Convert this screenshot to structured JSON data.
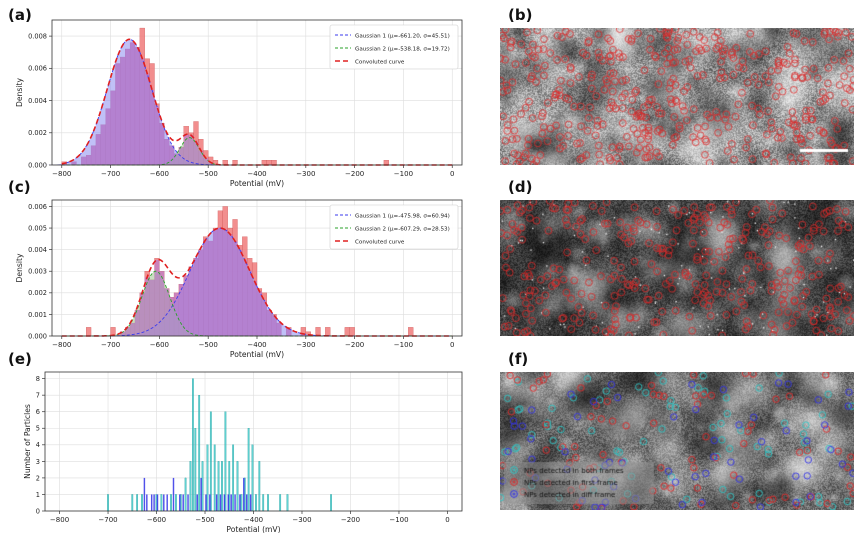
{
  "panels": {
    "a": "(a)",
    "b": "(b)",
    "c": "(c)",
    "d": "(d)",
    "e": "(e)",
    "f": "(f)"
  },
  "colors": {
    "hist_red": "#f07a7a",
    "overlap_purple": "#b07ad8",
    "fill_blue": "#8c8cf0",
    "fill_green": "#a7c79a",
    "gauss1": "#3a3aee",
    "gauss2": "#2aa02a",
    "conv": "#e02020",
    "both_frames": "#2ec4c4",
    "first_frame": "#e02828",
    "diff_frame": "#3232e6",
    "grid": "#dddddd"
  },
  "chart_data": [
    {
      "type": "bar",
      "panel": "(a)",
      "xlabel": "Potential (mV)",
      "ylabel": "Density",
      "xlim": [
        -820,
        20
      ],
      "ylim": [
        0,
        0.009
      ],
      "xticks": [
        -800,
        -700,
        -600,
        -500,
        -400,
        -300,
        -200,
        -100,
        0
      ],
      "yticks": [
        0.0,
        0.002,
        0.004,
        0.006,
        0.008
      ],
      "ytick_labels": [
        "0.000",
        "0.002",
        "0.004",
        "0.006",
        "0.008"
      ],
      "grid": true,
      "legend_position": "top-right",
      "bin_width": 10,
      "bins": [
        {
          "x": -800,
          "y": 0.0002
        },
        {
          "x": -780,
          "y": 0.0002
        },
        {
          "x": -760,
          "y": 0.0005
        },
        {
          "x": -750,
          "y": 0.0006
        },
        {
          "x": -740,
          "y": 0.0012
        },
        {
          "x": -730,
          "y": 0.0019
        },
        {
          "x": -720,
          "y": 0.0025
        },
        {
          "x": -710,
          "y": 0.0035
        },
        {
          "x": -700,
          "y": 0.0046
        },
        {
          "x": -690,
          "y": 0.0063
        },
        {
          "x": -680,
          "y": 0.0067
        },
        {
          "x": -670,
          "y": 0.0072
        },
        {
          "x": -660,
          "y": 0.0076
        },
        {
          "x": -650,
          "y": 0.0073
        },
        {
          "x": -640,
          "y": 0.0085
        },
        {
          "x": -630,
          "y": 0.0066
        },
        {
          "x": -620,
          "y": 0.0063
        },
        {
          "x": -610,
          "y": 0.0038
        },
        {
          "x": -600,
          "y": 0.0026
        },
        {
          "x": -590,
          "y": 0.0016
        },
        {
          "x": -580,
          "y": 0.0012
        },
        {
          "x": -570,
          "y": 0.0007
        },
        {
          "x": -560,
          "y": 0.0011
        },
        {
          "x": -550,
          "y": 0.0024
        },
        {
          "x": -540,
          "y": 0.002
        },
        {
          "x": -530,
          "y": 0.0027
        },
        {
          "x": -520,
          "y": 0.0016
        },
        {
          "x": -510,
          "y": 0.0009
        },
        {
          "x": -500,
          "y": 0.0005
        },
        {
          "x": -490,
          "y": 0.0003
        },
        {
          "x": -470,
          "y": 0.0003
        },
        {
          "x": -450,
          "y": 0.0003
        },
        {
          "x": -390,
          "y": 0.0003
        },
        {
          "x": -380,
          "y": 0.0003
        },
        {
          "x": -370,
          "y": 0.0003
        },
        {
          "x": -140,
          "y": 0.0003
        }
      ],
      "series": [
        {
          "name": "Gaussian 1 (μ=-661.20, σ=45.51)",
          "mu": -661.2,
          "sigma": 45.51,
          "style": "dash",
          "color": "#3a3aee"
        },
        {
          "name": "Gaussian 2 (μ=-538.18, σ=19.72)",
          "mu": -538.18,
          "sigma": 19.72,
          "style": "dash",
          "color": "#2aa02a"
        },
        {
          "name": "Convoluted curve",
          "style": "dash-thick",
          "color": "#e02020"
        }
      ],
      "peak1": 0.0078,
      "peak2": 0.0017,
      "curve_range": [
        -800,
        0
      ]
    },
    {
      "type": "bar",
      "panel": "(c)",
      "xlabel": "Potential (mV)",
      "ylabel": "Density",
      "xlim": [
        -820,
        20
      ],
      "ylim": [
        0,
        0.0063
      ],
      "xticks": [
        -800,
        -700,
        -600,
        -500,
        -400,
        -300,
        -200,
        -100,
        0
      ],
      "yticks": [
        0.0,
        0.001,
        0.002,
        0.003,
        0.004,
        0.005,
        0.006
      ],
      "ytick_labels": [
        "0.000",
        "0.001",
        "0.002",
        "0.003",
        "0.004",
        "0.005",
        "0.006"
      ],
      "grid": true,
      "legend_position": "top-right",
      "bin_width": 10,
      "bins": [
        {
          "x": -750,
          "y": 0.0004
        },
        {
          "x": -700,
          "y": 0.0004
        },
        {
          "x": -680,
          "y": 0.0002
        },
        {
          "x": -670,
          "y": 0.0004
        },
        {
          "x": -660,
          "y": 0.0006
        },
        {
          "x": -650,
          "y": 0.0012
        },
        {
          "x": -640,
          "y": 0.002
        },
        {
          "x": -630,
          "y": 0.003
        },
        {
          "x": -620,
          "y": 0.0026
        },
        {
          "x": -610,
          "y": 0.0036
        },
        {
          "x": -600,
          "y": 0.003
        },
        {
          "x": -590,
          "y": 0.0022
        },
        {
          "x": -580,
          "y": 0.0018
        },
        {
          "x": -570,
          "y": 0.002
        },
        {
          "x": -560,
          "y": 0.0024
        },
        {
          "x": -550,
          "y": 0.0028
        },
        {
          "x": -540,
          "y": 0.0032
        },
        {
          "x": -530,
          "y": 0.0036
        },
        {
          "x": -520,
          "y": 0.004
        },
        {
          "x": -510,
          "y": 0.0046
        },
        {
          "x": -500,
          "y": 0.0044
        },
        {
          "x": -490,
          "y": 0.005
        },
        {
          "x": -480,
          "y": 0.0058
        },
        {
          "x": -470,
          "y": 0.006
        },
        {
          "x": -460,
          "y": 0.005
        },
        {
          "x": -450,
          "y": 0.0054
        },
        {
          "x": -440,
          "y": 0.0042
        },
        {
          "x": -430,
          "y": 0.0046
        },
        {
          "x": -420,
          "y": 0.0036
        },
        {
          "x": -410,
          "y": 0.0034
        },
        {
          "x": -400,
          "y": 0.0022
        },
        {
          "x": -390,
          "y": 0.002
        },
        {
          "x": -380,
          "y": 0.0012
        },
        {
          "x": -370,
          "y": 0.001
        },
        {
          "x": -360,
          "y": 0.0006
        },
        {
          "x": -340,
          "y": 0.0004
        },
        {
          "x": -310,
          "y": 0.0004
        },
        {
          "x": -300,
          "y": 0.0002
        },
        {
          "x": -280,
          "y": 0.0004
        },
        {
          "x": -260,
          "y": 0.0004
        },
        {
          "x": -220,
          "y": 0.0004
        },
        {
          "x": -210,
          "y": 0.0004
        },
        {
          "x": -90,
          "y": 0.0004
        }
      ],
      "series": [
        {
          "name": "Gaussian 1 (μ=-475.98, σ=60.94)",
          "mu": -475.98,
          "sigma": 60.94,
          "style": "dash",
          "color": "#3a3aee"
        },
        {
          "name": "Gaussian 2 (μ=-607.29, σ=28.53)",
          "mu": -607.29,
          "sigma": 28.53,
          "style": "dash",
          "color": "#2aa02a"
        },
        {
          "name": "Convoluted curve",
          "style": "dash-thick",
          "color": "#e02020"
        }
      ],
      "peak1": 0.005,
      "peak2": 0.003,
      "curve_range": [
        -800,
        0
      ]
    },
    {
      "type": "bar",
      "panel": "(e)",
      "xlabel": "Potential (mV)",
      "ylabel": "Number of Particles",
      "xlim": [
        -830,
        30
      ],
      "ylim": [
        0,
        8.4
      ],
      "xticks": [
        -800,
        -700,
        -600,
        -500,
        -400,
        -300,
        -200,
        -100,
        0
      ],
      "yticks": [
        0,
        1,
        2,
        3,
        4,
        5,
        6,
        7,
        8
      ],
      "ytick_labels": [
        "0",
        "1",
        "2",
        "3",
        "4",
        "5",
        "6",
        "7",
        "8"
      ],
      "grid": true,
      "bar_width": 3,
      "cyan_bars": [
        {
          "x": -700,
          "y": 1
        },
        {
          "x": -650,
          "y": 1
        },
        {
          "x": -640,
          "y": 1
        },
        {
          "x": -630,
          "y": 1
        },
        {
          "x": -600,
          "y": 1
        },
        {
          "x": -590,
          "y": 1
        },
        {
          "x": -570,
          "y": 1
        },
        {
          "x": -560,
          "y": 1
        },
        {
          "x": -550,
          "y": 1
        },
        {
          "x": -540,
          "y": 2
        },
        {
          "x": -530,
          "y": 3
        },
        {
          "x": -525,
          "y": 8
        },
        {
          "x": -520,
          "y": 5
        },
        {
          "x": -512,
          "y": 7
        },
        {
          "x": -505,
          "y": 3
        },
        {
          "x": -495,
          "y": 4
        },
        {
          "x": -488,
          "y": 6
        },
        {
          "x": -480,
          "y": 4
        },
        {
          "x": -472,
          "y": 3
        },
        {
          "x": -465,
          "y": 3
        },
        {
          "x": -458,
          "y": 6
        },
        {
          "x": -450,
          "y": 3
        },
        {
          "x": -442,
          "y": 4
        },
        {
          "x": -433,
          "y": 3
        },
        {
          "x": -425,
          "y": 1
        },
        {
          "x": -418,
          "y": 2
        },
        {
          "x": -410,
          "y": 5
        },
        {
          "x": -402,
          "y": 4
        },
        {
          "x": -395,
          "y": 1
        },
        {
          "x": -388,
          "y": 3
        },
        {
          "x": -380,
          "y": 1
        },
        {
          "x": -370,
          "y": 1
        },
        {
          "x": -345,
          "y": 1
        },
        {
          "x": -330,
          "y": 1
        },
        {
          "x": -240,
          "y": 1
        }
      ],
      "blue_bars": [
        {
          "x": -625,
          "y": 2
        },
        {
          "x": -620,
          "y": 1
        },
        {
          "x": -610,
          "y": 1
        },
        {
          "x": -605,
          "y": 1
        },
        {
          "x": -598,
          "y": 1
        },
        {
          "x": -585,
          "y": 1
        },
        {
          "x": -578,
          "y": 1
        },
        {
          "x": -565,
          "y": 2
        },
        {
          "x": -552,
          "y": 1
        },
        {
          "x": -545,
          "y": 1
        },
        {
          "x": -535,
          "y": 1
        },
        {
          "x": -516,
          "y": 1
        },
        {
          "x": -508,
          "y": 2
        },
        {
          "x": -498,
          "y": 1
        },
        {
          "x": -490,
          "y": 1
        },
        {
          "x": -476,
          "y": 1
        },
        {
          "x": -468,
          "y": 1
        },
        {
          "x": -460,
          "y": 1
        },
        {
          "x": -452,
          "y": 1
        },
        {
          "x": -446,
          "y": 1
        },
        {
          "x": -438,
          "y": 1
        },
        {
          "x": -428,
          "y": 1
        },
        {
          "x": -420,
          "y": 2
        },
        {
          "x": -414,
          "y": 1
        },
        {
          "x": -406,
          "y": 1
        }
      ]
    }
  ],
  "images": {
    "f_legend": [
      {
        "label": "NPs detected in both frames",
        "color": "#2ec4c4"
      },
      {
        "label": "NPs detected in first frame",
        "color": "#e02828"
      },
      {
        "label": "NPs detected in diff frame",
        "color": "#3232e6"
      }
    ]
  }
}
